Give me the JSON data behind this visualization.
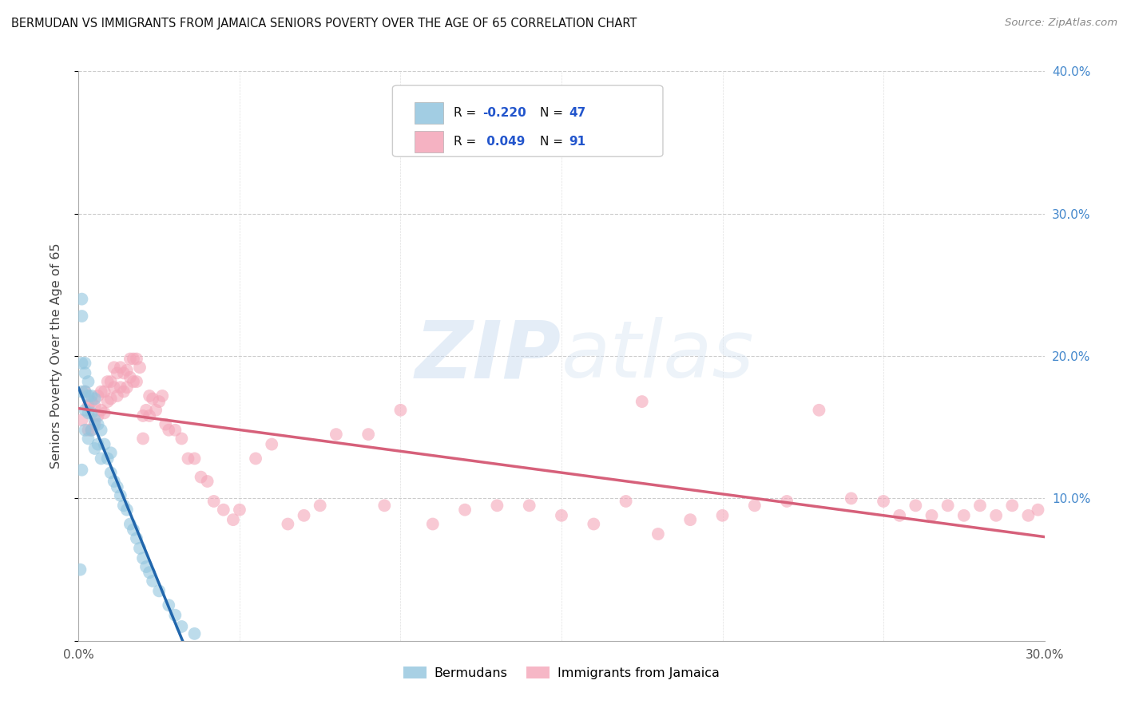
{
  "title": "BERMUDAN VS IMMIGRANTS FROM JAMAICA SENIORS POVERTY OVER THE AGE OF 65 CORRELATION CHART",
  "source": "Source: ZipAtlas.com",
  "ylabel": "Seniors Poverty Over the Age of 65",
  "legend_label1": "Bermudans",
  "legend_label2": "Immigrants from Jamaica",
  "xlim": [
    0.0,
    0.3
  ],
  "ylim": [
    0.0,
    0.4
  ],
  "color_blue": "#92c5de",
  "color_pink": "#f4a5b8",
  "color_line_blue": "#2166ac",
  "color_line_pink": "#d6607a",
  "color_line_dash": "#b0cfe8",
  "bg_color": "#ffffff",
  "grid_color": "#cccccc",
  "blue_x": [
    0.0005,
    0.001,
    0.001,
    0.001,
    0.001,
    0.001,
    0.002,
    0.002,
    0.002,
    0.002,
    0.002,
    0.003,
    0.003,
    0.003,
    0.003,
    0.004,
    0.004,
    0.004,
    0.005,
    0.005,
    0.005,
    0.006,
    0.006,
    0.007,
    0.007,
    0.008,
    0.009,
    0.01,
    0.01,
    0.011,
    0.012,
    0.013,
    0.014,
    0.015,
    0.016,
    0.017,
    0.018,
    0.019,
    0.02,
    0.021,
    0.022,
    0.023,
    0.025,
    0.028,
    0.03,
    0.032,
    0.036
  ],
  "blue_y": [
    0.05,
    0.24,
    0.228,
    0.195,
    0.175,
    0.12,
    0.195,
    0.188,
    0.175,
    0.162,
    0.148,
    0.182,
    0.172,
    0.16,
    0.142,
    0.172,
    0.16,
    0.148,
    0.17,
    0.155,
    0.135,
    0.152,
    0.138,
    0.148,
    0.128,
    0.138,
    0.128,
    0.132,
    0.118,
    0.112,
    0.108,
    0.102,
    0.095,
    0.092,
    0.082,
    0.078,
    0.072,
    0.065,
    0.058,
    0.052,
    0.048,
    0.042,
    0.035,
    0.025,
    0.018,
    0.01,
    0.005
  ],
  "pink_x": [
    0.001,
    0.002,
    0.003,
    0.003,
    0.004,
    0.004,
    0.005,
    0.005,
    0.006,
    0.006,
    0.007,
    0.007,
    0.008,
    0.008,
    0.009,
    0.009,
    0.01,
    0.01,
    0.011,
    0.011,
    0.012,
    0.012,
    0.013,
    0.013,
    0.014,
    0.014,
    0.015,
    0.015,
    0.016,
    0.016,
    0.017,
    0.017,
    0.018,
    0.018,
    0.019,
    0.02,
    0.02,
    0.021,
    0.022,
    0.022,
    0.023,
    0.024,
    0.025,
    0.026,
    0.027,
    0.028,
    0.03,
    0.032,
    0.034,
    0.036,
    0.038,
    0.04,
    0.042,
    0.045,
    0.048,
    0.05,
    0.055,
    0.06,
    0.065,
    0.07,
    0.075,
    0.08,
    0.09,
    0.095,
    0.1,
    0.11,
    0.12,
    0.13,
    0.14,
    0.15,
    0.16,
    0.17,
    0.175,
    0.18,
    0.19,
    0.2,
    0.21,
    0.22,
    0.23,
    0.24,
    0.25,
    0.255,
    0.26,
    0.265,
    0.27,
    0.275,
    0.28,
    0.285,
    0.29,
    0.295,
    0.298
  ],
  "pink_y": [
    0.155,
    0.175,
    0.165,
    0.148,
    0.168,
    0.148,
    0.165,
    0.152,
    0.172,
    0.158,
    0.175,
    0.162,
    0.175,
    0.16,
    0.182,
    0.168,
    0.182,
    0.17,
    0.192,
    0.178,
    0.188,
    0.172,
    0.192,
    0.178,
    0.188,
    0.175,
    0.19,
    0.178,
    0.198,
    0.185,
    0.198,
    0.182,
    0.198,
    0.182,
    0.192,
    0.158,
    0.142,
    0.162,
    0.172,
    0.158,
    0.17,
    0.162,
    0.168,
    0.172,
    0.152,
    0.148,
    0.148,
    0.142,
    0.128,
    0.128,
    0.115,
    0.112,
    0.098,
    0.092,
    0.085,
    0.092,
    0.128,
    0.138,
    0.082,
    0.088,
    0.095,
    0.145,
    0.145,
    0.095,
    0.162,
    0.082,
    0.092,
    0.095,
    0.095,
    0.088,
    0.082,
    0.098,
    0.168,
    0.075,
    0.085,
    0.088,
    0.095,
    0.098,
    0.162,
    0.1,
    0.098,
    0.088,
    0.095,
    0.088,
    0.095,
    0.088,
    0.095,
    0.088,
    0.095,
    0.088,
    0.092
  ]
}
